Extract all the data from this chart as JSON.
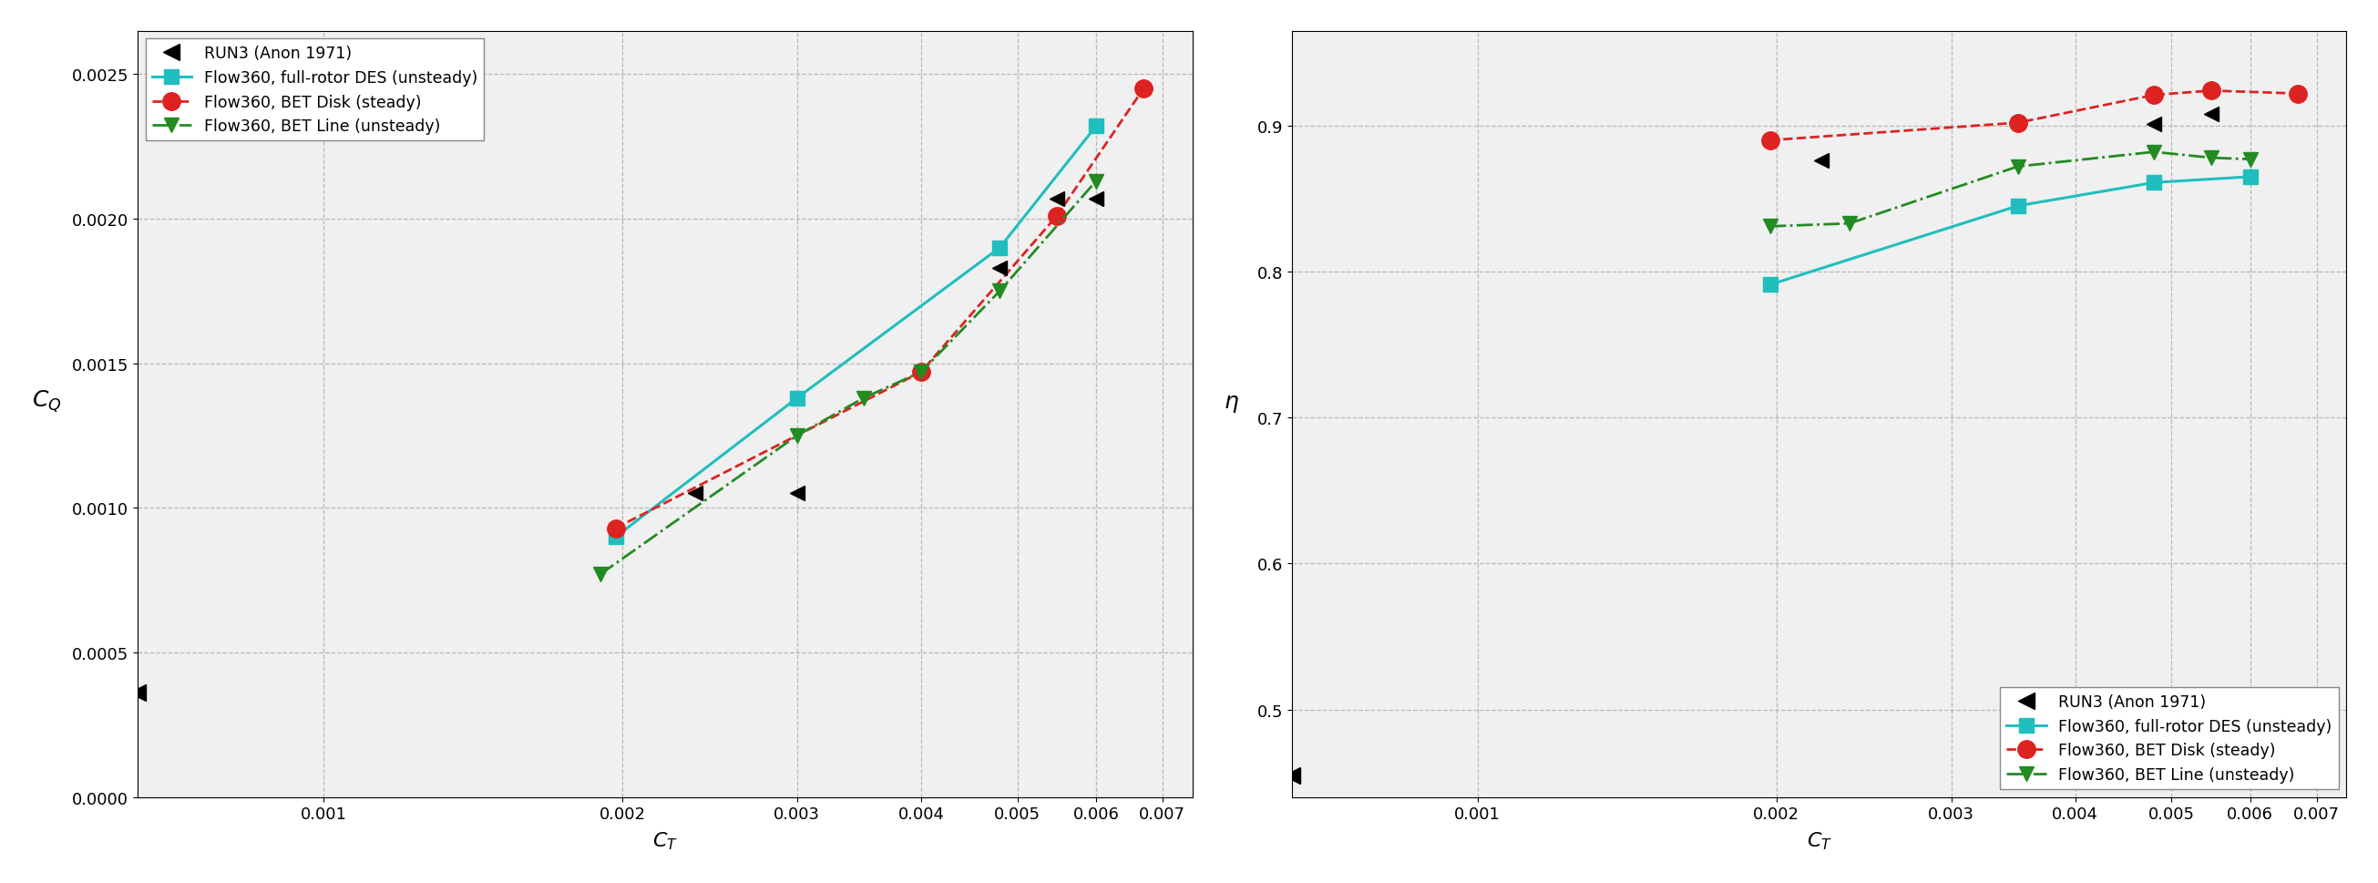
{
  "plot1": {
    "xlabel": "$C_T$",
    "ylabel": "$C_Q$",
    "xlim": [
      0.00065,
      0.0075
    ],
    "ylim": [
      0.0,
      0.00265
    ],
    "yticks": [
      0.0,
      0.0005,
      0.001,
      0.0015,
      0.002,
      0.0025
    ],
    "xticks": [
      0.001,
      0.002,
      0.003,
      0.004,
      0.005,
      0.006,
      0.007
    ],
    "series": {
      "RUN3": {
        "x": [
          0.00065
        ],
        "y": [
          0.00036
        ],
        "color": "black",
        "marker": "<",
        "markersize": 13,
        "linestyle": "None",
        "label": "RUN3 (Anon 1971)",
        "linewidth": 0,
        "zorder": 6
      },
      "DES": {
        "x": [
          0.00197,
          0.003,
          0.0048,
          0.006
        ],
        "y": [
          0.0009,
          0.00138,
          0.0019,
          0.00232
        ],
        "color": "#20BEBE",
        "marker": "s",
        "markersize": 11,
        "linestyle": "-",
        "label": "Flow360, full-rotor DES (unsteady)",
        "linewidth": 2.2,
        "zorder": 5
      },
      "BET_Disk": {
        "x": [
          0.00197,
          0.004,
          0.00548,
          0.0067
        ],
        "y": [
          0.00093,
          0.00147,
          0.00201,
          0.00245
        ],
        "color": "#DD2222",
        "marker": "o",
        "markersize": 14,
        "linestyle": "--",
        "label": "Flow360, BET Disk (steady)",
        "linewidth": 2.0,
        "zorder": 5
      },
      "BET_Line": {
        "x": [
          0.0019,
          0.003,
          0.0035,
          0.004,
          0.0048,
          0.006
        ],
        "y": [
          0.00077,
          0.00125,
          0.00138,
          0.00147,
          0.00175,
          0.00213
        ],
        "color": "#228B22",
        "marker": "v",
        "markersize": 12,
        "linestyle": "-.",
        "label": "Flow360, BET Line (unsteady)",
        "linewidth": 2.0,
        "zorder": 5
      },
      "RUN3_data": {
        "x": [
          0.00237,
          0.003,
          0.0048,
          0.00548,
          0.006
        ],
        "y": [
          0.00105,
          0.00105,
          0.00183,
          0.00207,
          0.00207
        ],
        "color": "black",
        "marker": "<",
        "markersize": 11,
        "linestyle": "None",
        "label": "_nolegend_",
        "linewidth": 0,
        "zorder": 6
      }
    },
    "legend_loc": "upper left"
  },
  "plot2": {
    "xlabel": "$C_T$",
    "ylabel": "$\\eta$",
    "xlim": [
      0.00065,
      0.0075
    ],
    "ylim": [
      0.44,
      0.965
    ],
    "yticks": [
      0.5,
      0.6,
      0.7,
      0.8,
      0.9
    ],
    "xticks": [
      0.001,
      0.002,
      0.003,
      0.004,
      0.005,
      0.006,
      0.007
    ],
    "series": {
      "RUN3": {
        "x": [
          0.00065
        ],
        "y": [
          0.455
        ],
        "color": "black",
        "marker": "<",
        "markersize": 13,
        "linestyle": "None",
        "label": "RUN3 (Anon 1971)",
        "linewidth": 0,
        "zorder": 6
      },
      "DES": {
        "x": [
          0.00197,
          0.0035,
          0.0048,
          0.006
        ],
        "y": [
          0.791,
          0.845,
          0.861,
          0.865
        ],
        "color": "#20BEBE",
        "marker": "s",
        "markersize": 11,
        "linestyle": "-",
        "label": "Flow360, full-rotor DES (unsteady)",
        "linewidth": 2.2,
        "zorder": 5
      },
      "BET_Disk": {
        "x": [
          0.00197,
          0.0035,
          0.0048,
          0.00548,
          0.0067
        ],
        "y": [
          0.89,
          0.902,
          0.921,
          0.924,
          0.922
        ],
        "color": "#DD2222",
        "marker": "o",
        "markersize": 14,
        "linestyle": "--",
        "label": "Flow360, BET Disk (steady)",
        "linewidth": 2.0,
        "zorder": 5
      },
      "BET_Line": {
        "x": [
          0.00197,
          0.00237,
          0.0035,
          0.0048,
          0.00548,
          0.006
        ],
        "y": [
          0.831,
          0.833,
          0.872,
          0.882,
          0.878,
          0.877
        ],
        "color": "#228B22",
        "marker": "v",
        "markersize": 12,
        "linestyle": "-.",
        "label": "Flow360, BET Line (unsteady)",
        "linewidth": 2.0,
        "zorder": 5
      },
      "RUN3_data": {
        "x": [
          0.00222,
          0.0048,
          0.00548
        ],
        "y": [
          0.876,
          0.901,
          0.908
        ],
        "color": "black",
        "marker": "<",
        "markersize": 11,
        "linestyle": "None",
        "label": "_nolegend_",
        "linewidth": 0,
        "zorder": 6
      }
    },
    "legend_loc": "lower right"
  },
  "bg_color": "#f0f0f0",
  "grid_color": "#aaaaaa",
  "legend_fontsize": 12.5,
  "tick_fontsize": 13,
  "label_fontsize": 16
}
